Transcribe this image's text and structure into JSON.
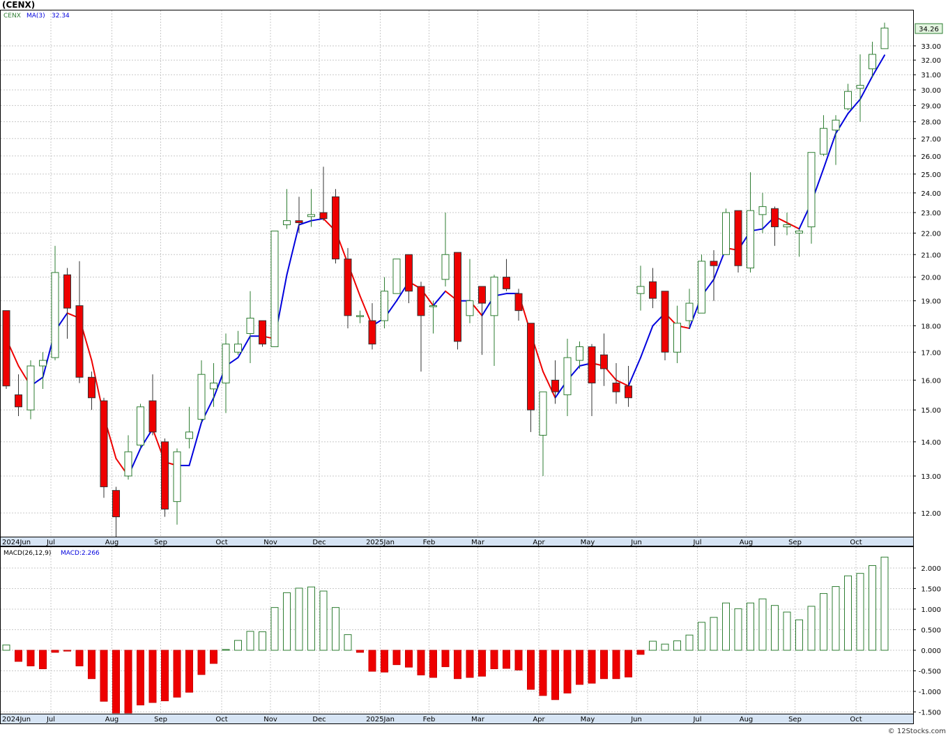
{
  "symbol_title": "(CENX)",
  "legend": {
    "price_label": "CENX",
    "ma_label": "MA(3)",
    "ma_value": "32.34",
    "macd_label": "MACD(26,12,9)",
    "macd_value": "MACD:2.266"
  },
  "last_price_tag": "34.26",
  "watermark": "© 12Stocks.com",
  "colors": {
    "up_candle": "#2e7d32",
    "down_candle": "#ee0000",
    "ma_up": "#0000dd",
    "ma_down": "#ee0000",
    "macd_pos": "#2e7d32",
    "macd_neg": "#ee0000",
    "axis_band": "#d6e4f4",
    "price_tag_bg": "#e3f5e0"
  },
  "chart_data": [
    {
      "type": "candlestick",
      "scale": "log",
      "ylim": [
        11.3,
        35.5
      ],
      "y_ticks": [
        "12.00",
        "13.00",
        "14.00",
        "15.00",
        "16.00",
        "17.00",
        "18.00",
        "19.00",
        "20.00",
        "21.00",
        "22.00",
        "23.00",
        "24.00",
        "25.00",
        "26.00",
        "27.00",
        "28.00",
        "29.00",
        "30.00",
        "31.00",
        "32.00",
        "33.00"
      ],
      "x_labels": [
        {
          "i": 0,
          "label": "2024Jun"
        },
        {
          "i": 4,
          "label": "Jul"
        },
        {
          "i": 9,
          "label": "Aug"
        },
        {
          "i": 13,
          "label": "Sep"
        },
        {
          "i": 18,
          "label": "Oct"
        },
        {
          "i": 22,
          "label": "Nov"
        },
        {
          "i": 26,
          "label": "Dec"
        },
        {
          "i": 31,
          "label": "2025Jan"
        },
        {
          "i": 35,
          "label": "Feb"
        },
        {
          "i": 39,
          "label": "Mar"
        },
        {
          "i": 44,
          "label": "Apr"
        },
        {
          "i": 48,
          "label": "May"
        },
        {
          "i": 52,
          "label": "Jun"
        },
        {
          "i": 57,
          "label": "Jul"
        },
        {
          "i": 61,
          "label": "Aug"
        },
        {
          "i": 65,
          "label": "Sep"
        },
        {
          "i": 70,
          "label": "Oct"
        }
      ],
      "ohlc": [
        [
          18.6,
          18.6,
          15.7,
          15.8
        ],
        [
          15.5,
          16.2,
          14.8,
          15.1
        ],
        [
          15.0,
          16.7,
          14.7,
          16.5
        ],
        [
          16.5,
          17.0,
          15.7,
          16.7
        ],
        [
          16.8,
          21.4,
          16.7,
          20.2
        ],
        [
          20.1,
          20.4,
          17.5,
          18.7
        ],
        [
          18.8,
          20.7,
          15.9,
          16.1
        ],
        [
          16.1,
          16.3,
          15.0,
          15.4
        ],
        [
          15.3,
          15.4,
          12.4,
          12.7
        ],
        [
          12.6,
          12.7,
          11.4,
          11.9
        ],
        [
          13.0,
          14.2,
          12.9,
          13.7
        ],
        [
          13.9,
          15.2,
          13.8,
          15.1
        ],
        [
          15.3,
          16.2,
          14.2,
          14.3
        ],
        [
          14.0,
          14.1,
          11.9,
          12.1
        ],
        [
          12.3,
          13.8,
          11.7,
          13.7
        ],
        [
          14.1,
          15.1,
          13.8,
          14.3
        ],
        [
          14.7,
          16.7,
          14.6,
          16.2
        ],
        [
          15.7,
          16.6,
          15.1,
          15.9
        ],
        [
          15.9,
          17.7,
          14.9,
          17.3
        ],
        [
          17.0,
          17.8,
          16.9,
          17.3
        ],
        [
          17.7,
          19.4,
          16.6,
          18.3
        ],
        [
          18.2,
          18.2,
          17.2,
          17.3
        ],
        [
          17.2,
          22.1,
          17.2,
          22.1
        ],
        [
          22.4,
          24.2,
          22.2,
          22.6
        ],
        [
          22.6,
          23.8,
          22.0,
          22.5
        ],
        [
          22.8,
          24.2,
          22.3,
          22.9
        ],
        [
          23.0,
          25.4,
          22.6,
          22.7
        ],
        [
          23.8,
          24.2,
          20.6,
          20.8
        ],
        [
          20.8,
          21.3,
          17.9,
          18.4
        ],
        [
          18.4,
          18.6,
          18.1,
          18.4
        ],
        [
          18.2,
          18.9,
          17.1,
          17.3
        ],
        [
          18.2,
          20.0,
          17.9,
          19.4
        ],
        [
          19.3,
          20.8,
          19.3,
          20.8
        ],
        [
          21.0,
          21.0,
          18.9,
          19.4
        ],
        [
          19.6,
          19.8,
          16.3,
          18.4
        ],
        [
          18.8,
          19.0,
          17.7,
          18.8
        ],
        [
          19.9,
          23.0,
          19.6,
          21.0
        ],
        [
          21.1,
          21.1,
          17.1,
          17.4
        ],
        [
          18.4,
          20.8,
          18.1,
          19.0
        ],
        [
          19.6,
          19.6,
          16.9,
          18.9
        ],
        [
          18.4,
          20.1,
          16.5,
          20.0
        ],
        [
          20.0,
          20.8,
          19.4,
          19.5
        ],
        [
          19.3,
          19.5,
          18.2,
          18.6
        ],
        [
          18.1,
          18.1,
          14.3,
          15.0
        ],
        [
          14.2,
          15.6,
          13.0,
          15.6
        ],
        [
          16.0,
          16.7,
          15.2,
          15.6
        ],
        [
          15.5,
          17.5,
          14.8,
          16.8
        ],
        [
          16.7,
          17.4,
          16.4,
          17.2
        ],
        [
          17.2,
          17.3,
          14.8,
          15.9
        ],
        [
          16.9,
          17.7,
          15.8,
          16.4
        ],
        [
          15.9,
          16.6,
          15.2,
          15.6
        ],
        [
          15.8,
          16.5,
          15.1,
          15.4
        ],
        [
          19.3,
          20.5,
          18.6,
          19.6
        ],
        [
          19.8,
          20.4,
          18.7,
          19.1
        ],
        [
          19.4,
          19.4,
          16.7,
          17.0
        ],
        [
          17.0,
          18.8,
          16.6,
          18.1
        ],
        [
          18.2,
          19.5,
          17.9,
          18.9
        ],
        [
          18.5,
          21.0,
          18.5,
          20.7
        ],
        [
          20.7,
          21.2,
          19.0,
          20.5
        ],
        [
          21.0,
          23.2,
          21.0,
          23.0
        ],
        [
          23.1,
          23.1,
          20.2,
          20.5
        ],
        [
          20.4,
          25.1,
          20.2,
          23.1
        ],
        [
          22.9,
          24.0,
          22.0,
          23.3
        ],
        [
          23.2,
          23.3,
          21.4,
          22.3
        ],
        [
          22.3,
          23.0,
          21.9,
          22.4
        ],
        [
          22.0,
          22.2,
          20.9,
          22.1
        ],
        [
          22.3,
          26.2,
          21.5,
          26.2
        ],
        [
          26.1,
          28.4,
          26.0,
          27.6
        ],
        [
          27.5,
          28.4,
          25.5,
          28.1
        ],
        [
          28.8,
          30.4,
          28.7,
          29.9
        ],
        [
          30.1,
          32.4,
          28.0,
          30.3
        ],
        [
          31.4,
          33.3,
          30.8,
          32.4
        ],
        [
          32.8,
          34.7,
          32.8,
          34.3
        ]
      ],
      "ma": [
        17.5,
        16.5,
        15.8,
        16.1,
        17.8,
        18.5,
        18.3,
        16.7,
        14.8,
        13.5,
        13.0,
        13.8,
        14.4,
        13.4,
        13.3,
        13.3,
        14.6,
        15.4,
        16.5,
        16.8,
        17.6,
        17.6,
        17.5,
        20.1,
        22.4,
        22.6,
        22.7,
        22.1,
        20.6,
        19.2,
        18.0,
        18.3,
        19.0,
        19.8,
        19.5,
        18.8,
        19.4,
        19.0,
        19.0,
        18.4,
        19.2,
        19.3,
        19.3,
        17.7,
        16.3,
        15.4,
        16.0,
        16.5,
        16.6,
        16.5,
        16.0,
        15.8,
        16.8,
        18.0,
        18.5,
        18.0,
        17.9,
        19.2,
        19.9,
        21.3,
        21.2,
        22.1,
        22.2,
        22.8,
        22.5,
        22.2,
        23.5,
        25.3,
        27.3,
        28.5,
        29.4,
        30.9,
        32.34
      ]
    },
    {
      "type": "bar",
      "title": "MACD(26,12,9)",
      "ylim": [
        -1.6,
        2.4
      ],
      "y_ticks": [
        "-1.500",
        "-1.000",
        "-0.500",
        "0.000",
        "0.500",
        "1.000",
        "1.500",
        "2.000"
      ],
      "values": [
        0.13,
        -0.27,
        -0.38,
        -0.45,
        -0.05,
        -0.02,
        -0.38,
        -0.69,
        -1.24,
        -1.58,
        -1.58,
        -1.33,
        -1.27,
        -1.23,
        -1.14,
        -1.02,
        -0.59,
        -0.32,
        0.02,
        0.24,
        0.46,
        0.45,
        1.04,
        1.4,
        1.51,
        1.54,
        1.44,
        1.04,
        0.38,
        -0.05,
        -0.51,
        -0.53,
        -0.35,
        -0.41,
        -0.6,
        -0.66,
        -0.4,
        -0.69,
        -0.66,
        -0.63,
        -0.45,
        -0.44,
        -0.48,
        -0.95,
        -1.1,
        -1.2,
        -1.04,
        -0.83,
        -0.8,
        -0.69,
        -0.69,
        -0.65,
        -0.1,
        0.22,
        0.15,
        0.23,
        0.37,
        0.68,
        0.8,
        1.15,
        1.01,
        1.15,
        1.25,
        1.09,
        0.93,
        0.74,
        1.07,
        1.38,
        1.55,
        1.81,
        1.87,
        2.06,
        2.266
      ]
    }
  ]
}
